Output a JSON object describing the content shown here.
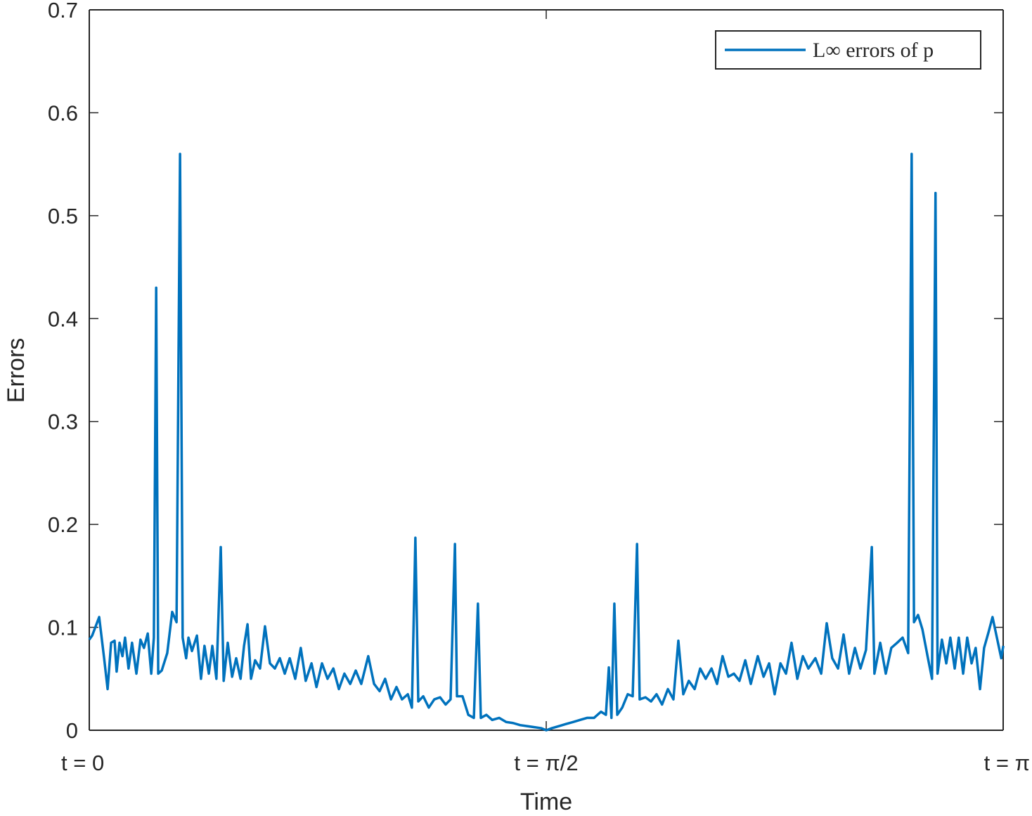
{
  "chart_data": {
    "type": "line",
    "xlabel": "Time",
    "ylabel": "Errors",
    "xlim": [
      0,
      3.1416
    ],
    "ylim": [
      0,
      0.7
    ],
    "xticks": [
      {
        "value": 0,
        "label": "t = 0"
      },
      {
        "value": 1.5708,
        "label": "t = π/2"
      },
      {
        "value": 3.1416,
        "label": "t = π"
      }
    ],
    "yticks": [
      0,
      0.1,
      0.2,
      0.3,
      0.4,
      0.5,
      0.6,
      0.7
    ],
    "legend": "northeast",
    "box": true,
    "series": [
      {
        "name": "L∞ errors of p",
        "color": "#0072BD",
        "x": [
          0,
          0.01,
          0.034,
          0.051,
          0.063,
          0.075,
          0.087,
          0.094,
          0.104,
          0.114,
          0.123,
          0.135,
          0.147,
          0.162,
          0.176,
          0.188,
          0.201,
          0.213,
          0.222,
          0.23,
          0.237,
          0.249,
          0.268,
          0.285,
          0.3,
          0.312,
          0.321,
          0.333,
          0.341,
          0.353,
          0.37,
          0.384,
          0.396,
          0.411,
          0.423,
          0.437,
          0.452,
          0.462,
          0.476,
          0.491,
          0.505,
          0.52,
          0.532,
          0.544,
          0.556,
          0.57,
          0.587,
          0.604,
          0.621,
          0.638,
          0.655,
          0.672,
          0.689,
          0.708,
          0.727,
          0.744,
          0.764,
          0.781,
          0.8,
          0.819,
          0.839,
          0.858,
          0.877,
          0.897,
          0.916,
          0.935,
          0.959,
          0.979,
          0.998,
          1.017,
          1.037,
          1.056,
          1.075,
          1.095,
          1.109,
          1.121,
          1.131,
          1.148,
          1.167,
          1.186,
          1.206,
          1.225,
          1.242,
          1.257,
          1.264,
          1.283,
          1.303,
          1.322,
          1.336,
          1.346,
          1.365,
          1.385,
          1.409,
          1.433,
          1.457,
          1.481,
          1.505,
          1.53,
          1.554,
          1.571,
          1.59,
          1.614,
          1.638,
          1.663,
          1.687,
          1.711,
          1.735,
          1.759,
          1.776,
          1.786,
          1.795,
          1.805,
          1.815,
          1.832,
          1.851,
          1.868,
          1.883,
          1.892,
          1.912,
          1.931,
          1.95,
          1.969,
          1.989,
          2.008,
          2.025,
          2.042,
          2.061,
          2.081,
          2.1,
          2.119,
          2.139,
          2.158,
          2.177,
          2.197,
          2.216,
          2.235,
          2.255,
          2.274,
          2.298,
          2.318,
          2.337,
          2.356,
          2.376,
          2.395,
          2.414,
          2.434,
          2.453,
          2.472,
          2.496,
          2.516,
          2.535,
          2.554,
          2.574,
          2.593,
          2.612,
          2.632,
          2.651,
          2.67,
          2.69,
          2.699,
          2.719,
          2.738,
          2.757,
          2.777,
          2.796,
          2.815,
          2.827,
          2.835,
          2.849,
          2.864,
          2.883,
          2.897,
          2.909,
          2.916,
          2.931,
          2.946,
          2.96,
          2.975,
          2.989,
          3.004,
          3.018,
          3.033,
          3.047,
          3.062,
          3.076,
          3.091,
          3.105,
          3.12,
          3.135,
          3.142
        ],
        "values": [
          0.088,
          0.092,
          0.11,
          0.07,
          0.04,
          0.085,
          0.087,
          0.057,
          0.085,
          0.072,
          0.09,
          0.06,
          0.085,
          0.055,
          0.088,
          0.08,
          0.094,
          0.055,
          0.09,
          0.43,
          0.055,
          0.058,
          0.075,
          0.115,
          0.105,
          0.56,
          0.09,
          0.07,
          0.09,
          0.077,
          0.092,
          0.05,
          0.082,
          0.055,
          0.082,
          0.05,
          0.178,
          0.048,
          0.085,
          0.052,
          0.07,
          0.05,
          0.082,
          0.103,
          0.05,
          0.068,
          0.06,
          0.101,
          0.065,
          0.06,
          0.07,
          0.055,
          0.07,
          0.05,
          0.08,
          0.048,
          0.065,
          0.042,
          0.065,
          0.05,
          0.06,
          0.04,
          0.055,
          0.045,
          0.058,
          0.045,
          0.072,
          0.045,
          0.038,
          0.05,
          0.03,
          0.042,
          0.03,
          0.035,
          0.022,
          0.187,
          0.028,
          0.033,
          0.022,
          0.03,
          0.032,
          0.025,
          0.03,
          0.181,
          0.033,
          0.033,
          0.015,
          0.012,
          0.123,
          0.012,
          0.015,
          0.01,
          0.012,
          0.008,
          0.007,
          0.005,
          0.004,
          0.003,
          0.002,
          0.0,
          0.002,
          0.004,
          0.006,
          0.008,
          0.01,
          0.012,
          0.012,
          0.018,
          0.015,
          0.061,
          0.012,
          0.123,
          0.015,
          0.022,
          0.035,
          0.033,
          0.181,
          0.03,
          0.032,
          0.028,
          0.035,
          0.025,
          0.04,
          0.03,
          0.087,
          0.035,
          0.048,
          0.04,
          0.06,
          0.05,
          0.06,
          0.045,
          0.072,
          0.052,
          0.055,
          0.048,
          0.068,
          0.045,
          0.072,
          0.052,
          0.065,
          0.035,
          0.065,
          0.055,
          0.085,
          0.05,
          0.072,
          0.06,
          0.07,
          0.055,
          0.104,
          0.07,
          0.06,
          0.093,
          0.055,
          0.08,
          0.06,
          0.078,
          0.178,
          0.055,
          0.085,
          0.055,
          0.08,
          0.085,
          0.09,
          0.075,
          0.56,
          0.105,
          0.112,
          0.098,
          0.07,
          0.05,
          0.522,
          0.055,
          0.088,
          0.065,
          0.09,
          0.06,
          0.09,
          0.055,
          0.09,
          0.065,
          0.08,
          0.04,
          0.08,
          0.095,
          0.11,
          0.09,
          0.07,
          0.082
        ]
      }
    ]
  }
}
